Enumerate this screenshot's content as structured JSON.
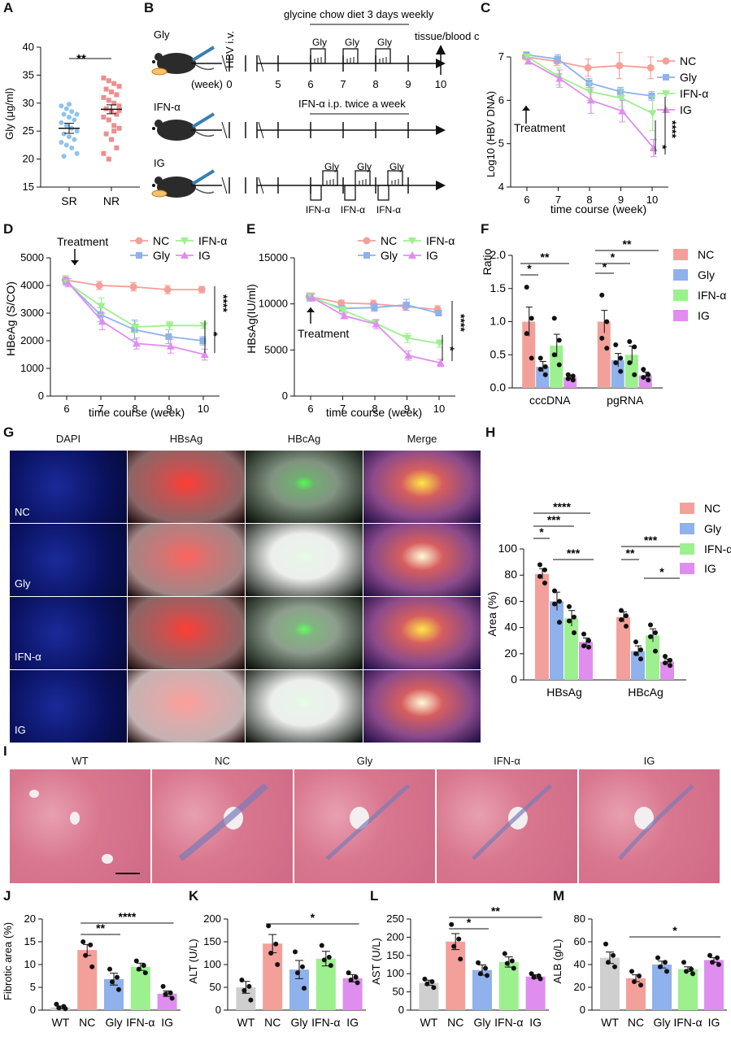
{
  "figure": {
    "panel_labels": [
      "A",
      "B",
      "C",
      "D",
      "E",
      "F",
      "G",
      "H",
      "I",
      "J",
      "K",
      "L",
      "M"
    ],
    "groups": [
      "NC",
      "Gly",
      "IFN-α",
      "IG"
    ],
    "colors": {
      "NC": "#f4a09a",
      "Gly": "#8fb1ec",
      "IFN-α": "#9df08e",
      "IG": "#df8ef0",
      "WT": "#cfcfcf",
      "SR": "#8ec3ea",
      "NR": "#ef8e8e"
    }
  },
  "panelA": {
    "ylabel": "Gly (μg/ml)",
    "categories": [
      "SR",
      "NR"
    ],
    "yticks": [
      "15",
      "20",
      "25",
      "30",
      "35",
      "40"
    ],
    "sig": "**"
  },
  "panelB": {
    "row_gly": "Gly",
    "row_ifn": "IFN-α",
    "row_ig": "IG",
    "hbv_iv": "HBV i.v.",
    "week": "(week)",
    "weeks": [
      "0",
      "5",
      "6",
      "7",
      "8",
      "9",
      "10"
    ],
    "diet": "glycine chow diet 3 days weekly",
    "collection": "tissue/blood collection",
    "ifn_ip": "IFN-α i.p. twice a week",
    "gly_box": "Gly",
    "ifn_box": "IFN-α"
  },
  "panelC": {
    "ylabel": "Log10 (HBV DNA)",
    "xlabel": "time course (week)",
    "treatment": "Treatment",
    "sig1": "*",
    "sig2": "****"
  },
  "panelD": {
    "ylabel": "HBeAg (S/CO)",
    "xlabel": "time course (week)",
    "treatment": "Treatment",
    "sig1": "*",
    "sig2": "****"
  },
  "panelE": {
    "ylabel": "HBsAg(IU/ml)",
    "xlabel": "time course (week)",
    "treatment": "Treatment",
    "sig1": "*",
    "sig2": "****"
  },
  "panelF": {
    "ylabel": "Ratio",
    "sig_star": "*",
    "sig_2star": "**"
  },
  "panelG": {
    "columns": [
      "DAPI",
      "HBsAg",
      "HBcAg",
      "Merge"
    ],
    "rows": [
      "NC",
      "Gly",
      "IFN-α",
      "IG"
    ]
  },
  "panelH": {
    "ylabel": "Area (%)"
  },
  "panelI": {
    "columns": [
      "WT",
      "NC",
      "Gly",
      "IFN-α",
      "IG"
    ]
  },
  "panelJ": {
    "ylabel": "Fibrotic area (%)"
  },
  "panelK": {
    "ylabel": "ALT (U/L)"
  },
  "panelL": {
    "ylabel": "AST (U/L)"
  },
  "panelM": {
    "ylabel": "ALB (g/L)"
  },
  "chart_data": [
    {
      "id": "A",
      "type": "scatter",
      "categories": [
        "SR",
        "NR"
      ],
      "ylim": [
        15,
        40
      ],
      "series": [
        {
          "name": "SR",
          "mean": 25.5,
          "sem": 0.9,
          "values": [
            29.5,
            29,
            28.5,
            28,
            28,
            27.5,
            27,
            26.5,
            26,
            25.5,
            25,
            24.5,
            24,
            23.5,
            23,
            22.5,
            22,
            21,
            20.5,
            29.8
          ]
        },
        {
          "name": "NR",
          "mean": 28.9,
          "sem": 0.8,
          "values": [
            34.5,
            34,
            33.5,
            33,
            32.5,
            32,
            31.5,
            31,
            30.5,
            30,
            29.5,
            29,
            28.5,
            28,
            27.5,
            27,
            26,
            25.5,
            24.5,
            23.5,
            22,
            21,
            20,
            25,
            28.7
          ]
        }
      ]
    },
    {
      "id": "C",
      "type": "line",
      "x": [
        6,
        7,
        8,
        9,
        10
      ],
      "xlabel": "time course (week)",
      "ylabel": "Log10 (HBV DNA)",
      "ylim": [
        4,
        7
      ],
      "yticks": [
        4,
        5,
        6,
        7
      ],
      "series": [
        {
          "name": "NC",
          "values": [
            7.0,
            6.9,
            6.75,
            6.8,
            6.75
          ],
          "err": [
            0.05,
            0.1,
            0.2,
            0.3,
            0.25
          ]
        },
        {
          "name": "Gly",
          "values": [
            7.05,
            6.95,
            6.4,
            6.2,
            6.1
          ],
          "err": [
            0.05,
            0.1,
            0.1,
            0.1,
            0.1
          ]
        },
        {
          "name": "IFN-α",
          "values": [
            7.0,
            6.55,
            6.2,
            6.05,
            5.7
          ],
          "err": [
            0.05,
            0.2,
            0.2,
            0.2,
            0.4
          ]
        },
        {
          "name": "IG",
          "values": [
            6.9,
            6.5,
            6.0,
            5.75,
            4.9
          ],
          "err": [
            0.05,
            0.2,
            0.3,
            0.25,
            0.2
          ]
        }
      ]
    },
    {
      "id": "D",
      "type": "line",
      "x": [
        6,
        7,
        8,
        9,
        10
      ],
      "xlabel": "time course (week)",
      "ylabel": "HBeAg (S/CO)",
      "ylim": [
        0,
        5000
      ],
      "yticks": [
        0,
        1000,
        2000,
        3000,
        4000,
        5000
      ],
      "series": [
        {
          "name": "NC",
          "values": [
            4200,
            4000,
            3950,
            3850,
            3850
          ],
          "err": [
            150,
            150,
            150,
            150,
            120
          ]
        },
        {
          "name": "Gly",
          "values": [
            4150,
            2950,
            2400,
            2150,
            2000
          ],
          "err": [
            150,
            250,
            350,
            250,
            150
          ]
        },
        {
          "name": "IFN-α",
          "values": [
            4100,
            3250,
            2500,
            2550,
            2550
          ],
          "err": [
            100,
            300,
            200,
            150,
            100
          ]
        },
        {
          "name": "IG",
          "values": [
            4100,
            2700,
            1900,
            1800,
            1500
          ],
          "err": [
            150,
            300,
            200,
            250,
            200
          ]
        }
      ]
    },
    {
      "id": "E",
      "type": "line",
      "x": [
        6,
        7,
        8,
        9,
        10
      ],
      "xlabel": "time course (week)",
      "ylabel": "HBsAg(IU/ml)",
      "ylim": [
        0,
        15000
      ],
      "yticks": [
        0,
        5000,
        10000,
        15000
      ],
      "series": [
        {
          "name": "NC",
          "values": [
            10800,
            10100,
            10000,
            9700,
            9400
          ],
          "err": [
            400,
            300,
            400,
            400,
            400
          ]
        },
        {
          "name": "Gly",
          "values": [
            10700,
            9500,
            9600,
            9900,
            9000
          ],
          "err": [
            400,
            300,
            400,
            600,
            300
          ]
        },
        {
          "name": "IFN-α",
          "values": [
            10800,
            9300,
            7900,
            6300,
            5700
          ],
          "err": [
            400,
            400,
            400,
            500,
            400
          ]
        },
        {
          "name": "IG",
          "values": [
            10700,
            8700,
            7800,
            4400,
            3600
          ],
          "err": [
            400,
            300,
            500,
            500,
            400
          ]
        }
      ]
    },
    {
      "id": "F",
      "type": "bar",
      "categories": [
        "cccDNA",
        "pgRNA"
      ],
      "ylabel": "Ratio",
      "ylim": [
        0,
        2.0
      ],
      "yticks": [
        0.0,
        0.5,
        1.0,
        1.5,
        2.0
      ],
      "series": [
        {
          "name": "NC",
          "values": [
            1.0,
            1.0
          ],
          "err": [
            0.22,
            0.17
          ],
          "points": [
            [
              1.52,
              1.05,
              0.82,
              0.45
            ],
            [
              1.4,
              1.0,
              0.75,
              0.6
            ]
          ]
        },
        {
          "name": "Gly",
          "values": [
            0.32,
            0.42
          ],
          "err": [
            0.08,
            0.1
          ],
          "points": [
            [
              0.45,
              0.32,
              0.28,
              0.2
            ],
            [
              0.65,
              0.45,
              0.38,
              0.25
            ]
          ]
        },
        {
          "name": "IFN-α",
          "values": [
            0.64,
            0.5
          ],
          "err": [
            0.17,
            0.13
          ],
          "points": [
            [
              1.05,
              0.72,
              0.5,
              0.35
            ],
            [
              0.7,
              0.62,
              0.38,
              0.2
            ]
          ]
        },
        {
          "name": "IG",
          "values": [
            0.16,
            0.19
          ],
          "err": [
            0.03,
            0.05
          ],
          "points": [
            [
              0.2,
              0.18,
              0.14,
              0.12
            ],
            [
              0.28,
              0.2,
              0.16,
              0.12
            ]
          ]
        }
      ]
    },
    {
      "id": "H",
      "type": "bar",
      "categories": [
        "HBsAg",
        "HBcAg"
      ],
      "ylabel": "Area (%)",
      "ylim": [
        0,
        100
      ],
      "yticks": [
        0,
        20,
        40,
        60,
        80,
        100
      ],
      "series": [
        {
          "name": "NC",
          "values": [
            81,
            48
          ],
          "err": [
            4,
            4
          ],
          "points": [
            [
              88,
              84,
              79,
              74
            ],
            [
              53,
              49,
              46,
              41
            ]
          ]
        },
        {
          "name": "Gly",
          "values": [
            60,
            22
          ],
          "err": [
            7,
            4
          ],
          "points": [
            [
              68,
              60,
              58,
              44
            ],
            [
              29,
              23,
              20,
              16
            ]
          ]
        },
        {
          "name": "IFN-α",
          "values": [
            47,
            34
          ],
          "err": [
            6,
            5
          ],
          "points": [
            [
              56,
              48,
              45,
              36
            ],
            [
              42,
              36,
              33,
              22
            ]
          ]
        },
        {
          "name": "IG",
          "values": [
            29,
            14
          ],
          "err": [
            3,
            2
          ],
          "points": [
            [
              35,
              30,
              26,
              25
            ],
            [
              18,
              15,
              13,
              11
            ]
          ]
        }
      ]
    },
    {
      "id": "J",
      "type": "bar",
      "categories": [
        "WT",
        "NC",
        "Gly",
        "IFN-α",
        "IG"
      ],
      "ylabel": "Fibrotic area (%)",
      "ylim": [
        0,
        20
      ],
      "yticks": [
        0,
        5,
        10,
        15,
        20
      ],
      "values": [
        0.6,
        13.2,
        6.8,
        9.5,
        3.6
      ],
      "err": [
        0.3,
        1.2,
        1.3,
        0.8,
        0.6
      ],
      "points": [
        [
          1.3,
          0.8,
          0.5,
          0.3
        ],
        [
          15.0,
          14.3,
          12.0,
          9.5
        ],
        [
          9.0,
          7.2,
          6.2,
          4.5
        ],
        [
          10.8,
          9.8,
          9.0,
          8.2
        ],
        [
          5.2,
          3.8,
          3.5,
          2.6
        ]
      ]
    },
    {
      "id": "K",
      "type": "bar",
      "categories": [
        "WT",
        "NC",
        "Gly",
        "IFN-α",
        "IG"
      ],
      "ylabel": "ALT (U/L)",
      "ylim": [
        0,
        200
      ],
      "yticks": [
        0,
        50,
        100,
        150,
        200
      ],
      "values": [
        50,
        146,
        89,
        113,
        70
      ],
      "err": [
        13,
        20,
        20,
        16,
        8
      ],
      "points": [
        [
          66,
          52,
          43,
          22
        ],
        [
          185,
          145,
          125,
          100
        ],
        [
          128,
          95,
          82,
          48
        ],
        [
          142,
          116,
          110,
          98
        ],
        [
          82,
          72,
          66,
          60
        ]
      ]
    },
    {
      "id": "L",
      "type": "bar",
      "categories": [
        "WT",
        "NC",
        "Gly",
        "IFN-α",
        "IG"
      ],
      "ylabel": "AST (U/L)",
      "ylim": [
        0,
        250
      ],
      "yticks": [
        0,
        50,
        100,
        150,
        200,
        250
      ],
      "values": [
        75,
        188,
        110,
        132,
        92
      ],
      "err": [
        7,
        22,
        14,
        14,
        5
      ],
      "points": [
        [
          85,
          78,
          72,
          62
        ],
        [
          235,
          195,
          175,
          140
        ],
        [
          130,
          115,
          100,
          95
        ],
        [
          155,
          135,
          128,
          115
        ],
        [
          100,
          94,
          90,
          86
        ]
      ]
    },
    {
      "id": "M",
      "type": "bar",
      "categories": [
        "WT",
        "NC",
        "Gly",
        "IFN-α",
        "IG"
      ],
      "ylabel": "ALB (g/L)",
      "ylim": [
        0,
        80
      ],
      "yticks": [
        0,
        20,
        40,
        60,
        80
      ],
      "values": [
        46,
        28,
        40,
        36,
        44
      ],
      "err": [
        5,
        3,
        3,
        2,
        2
      ],
      "points": [
        [
          58,
          48,
          42,
          38
        ],
        [
          34,
          30,
          25,
          22
        ],
        [
          46,
          42,
          38,
          34
        ],
        [
          42,
          36,
          34,
          32
        ],
        [
          48,
          46,
          42,
          40
        ]
      ]
    }
  ]
}
